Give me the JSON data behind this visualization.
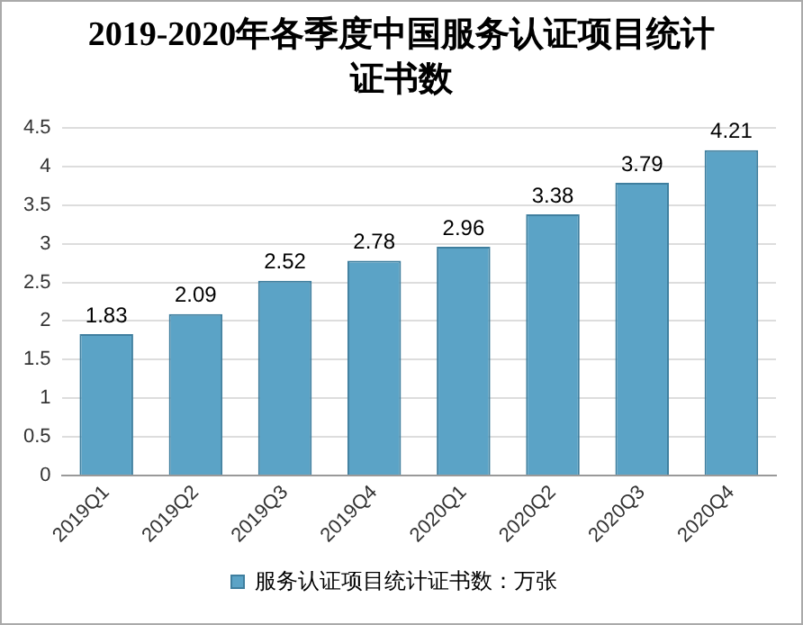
{
  "chart_data": {
    "type": "bar",
    "title": "2019-2020年各季度中国服务认证项目统计证书数",
    "categories": [
      "2019Q1",
      "2019Q2",
      "2019Q3",
      "2019Q4",
      "2020Q1",
      "2020Q2",
      "2020Q3",
      "2020Q4"
    ],
    "series": [
      {
        "name": "服务认证项目统计证书数：万张",
        "color": "#5ba3c6",
        "values": [
          1.83,
          2.09,
          2.52,
          2.78,
          2.96,
          3.38,
          3.79,
          4.21
        ]
      }
    ],
    "ylim": [
      0,
      4.5
    ],
    "yticks": [
      0,
      0.5,
      1,
      1.5,
      2,
      2.5,
      3,
      3.5,
      4,
      4.5
    ],
    "grid": "y",
    "legend": "bottom",
    "data_labels": true
  }
}
